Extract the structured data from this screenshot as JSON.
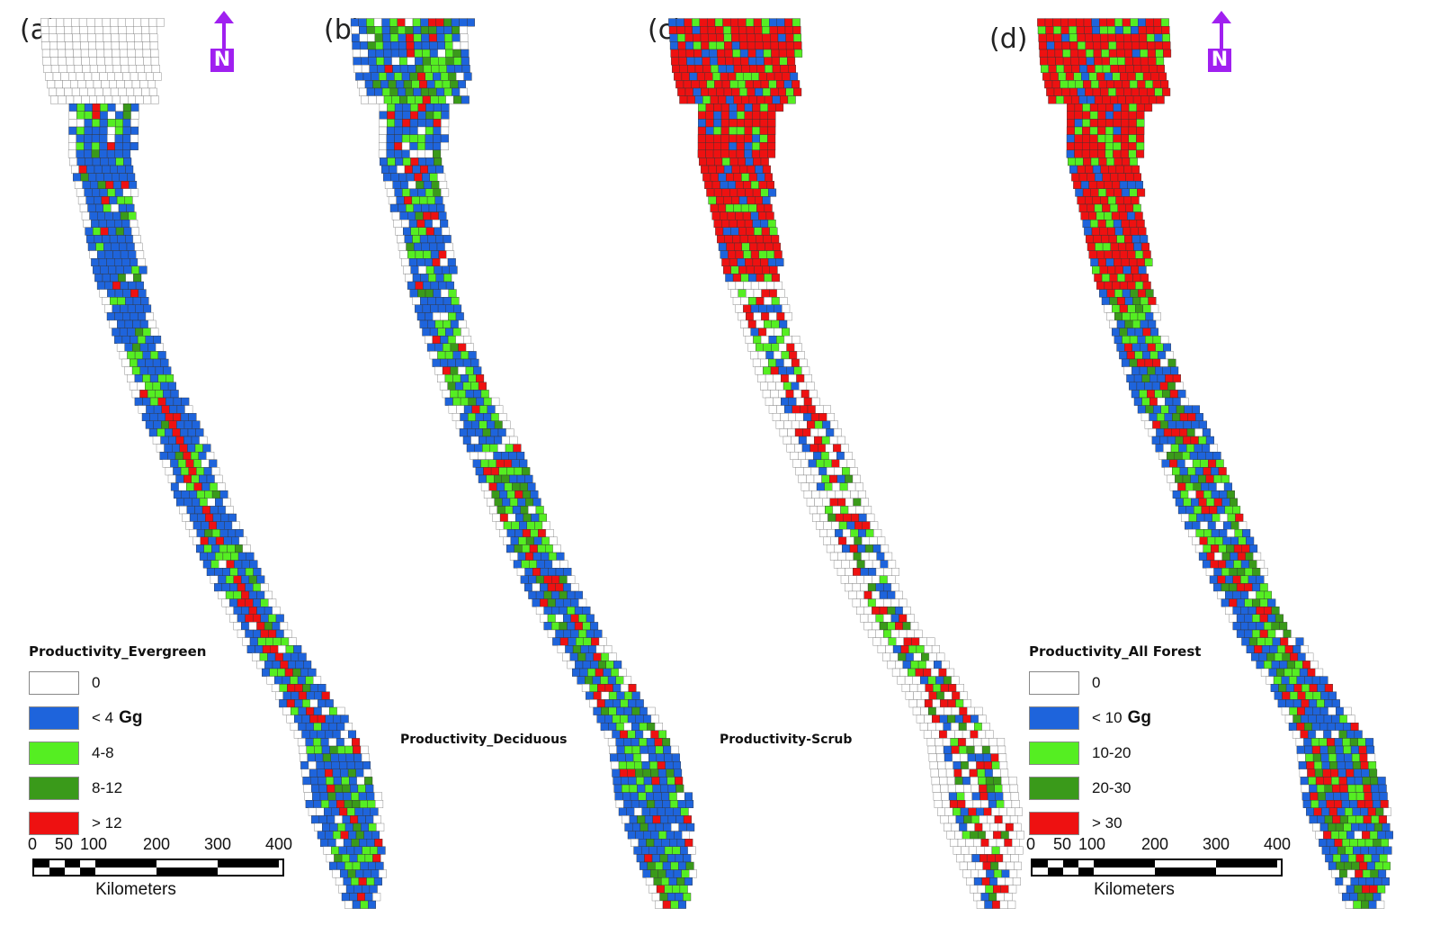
{
  "panels": [
    {
      "label": "(a)"
    },
    {
      "label": "(b)"
    },
    {
      "label": "(c)"
    },
    {
      "label": "(d)"
    }
  ],
  "north_arrow": {
    "letter": "N",
    "color": "#a020f0"
  },
  "legend_evergreen": {
    "title": "Productivity_Evergreen",
    "unit": "Gg",
    "classes": [
      {
        "label": "0",
        "color": "#ffffff"
      },
      {
        "label": "< 4",
        "color": "#1e64dc"
      },
      {
        "label": "4-8",
        "color": "#55ee22"
      },
      {
        "label": "8-12",
        "color": "#3a9a1a"
      },
      {
        "label": "> 12",
        "color": "#ee1111"
      }
    ]
  },
  "legend_all_forest": {
    "title": "Productivity_All Forest",
    "unit": "Gg",
    "classes": [
      {
        "label": "0",
        "color": "#ffffff"
      },
      {
        "label": "< 10",
        "color": "#1e64dc"
      },
      {
        "label": "10-20",
        "color": "#55ee22"
      },
      {
        "label": "20-30",
        "color": "#3a9a1a"
      },
      {
        "label": "> 30",
        "color": "#ee1111"
      }
    ]
  },
  "map_titles": {
    "deciduous": "Productivity_Deciduous",
    "scrub": "Productivity-Scrub"
  },
  "scale_bar": {
    "ticks": [
      "0",
      "50",
      "100",
      "200",
      "300",
      "400"
    ],
    "tick_values_km": [
      0,
      50,
      100,
      200,
      300,
      400
    ],
    "unit": "Kilometers"
  }
}
